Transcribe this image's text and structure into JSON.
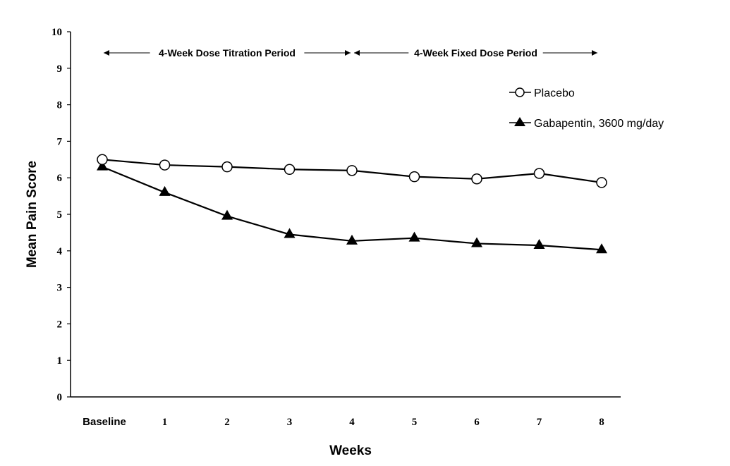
{
  "chart_data": {
    "type": "line",
    "xlabel": "Weeks",
    "ylabel": "Mean Pain Score",
    "ylim": [
      0,
      10
    ],
    "yticks": [
      "0",
      "1",
      "2",
      "3",
      "4",
      "5",
      "6",
      "7",
      "8",
      "9",
      "10"
    ],
    "categories": [
      "Baseline",
      "1",
      "2",
      "3",
      "4",
      "5",
      "6",
      "7",
      "8"
    ],
    "grid": false,
    "legend_position": "top-right",
    "series": [
      {
        "name": "Placebo",
        "marker": "open-circle",
        "values": [
          6.5,
          6.35,
          6.3,
          6.23,
          6.2,
          6.03,
          5.97,
          6.12,
          5.87
        ]
      },
      {
        "name": "Gabapentin, 3600 mg/day",
        "marker": "filled-triangle",
        "values": [
          6.3,
          5.6,
          4.95,
          4.45,
          4.27,
          4.35,
          4.2,
          4.15,
          4.03
        ]
      }
    ],
    "annotations": [
      {
        "text": "4-Week Dose Titration Period",
        "from": "Baseline",
        "to": "4"
      },
      {
        "text": "4-Week Fixed Dose Period",
        "from": "4",
        "to": "8"
      }
    ]
  }
}
